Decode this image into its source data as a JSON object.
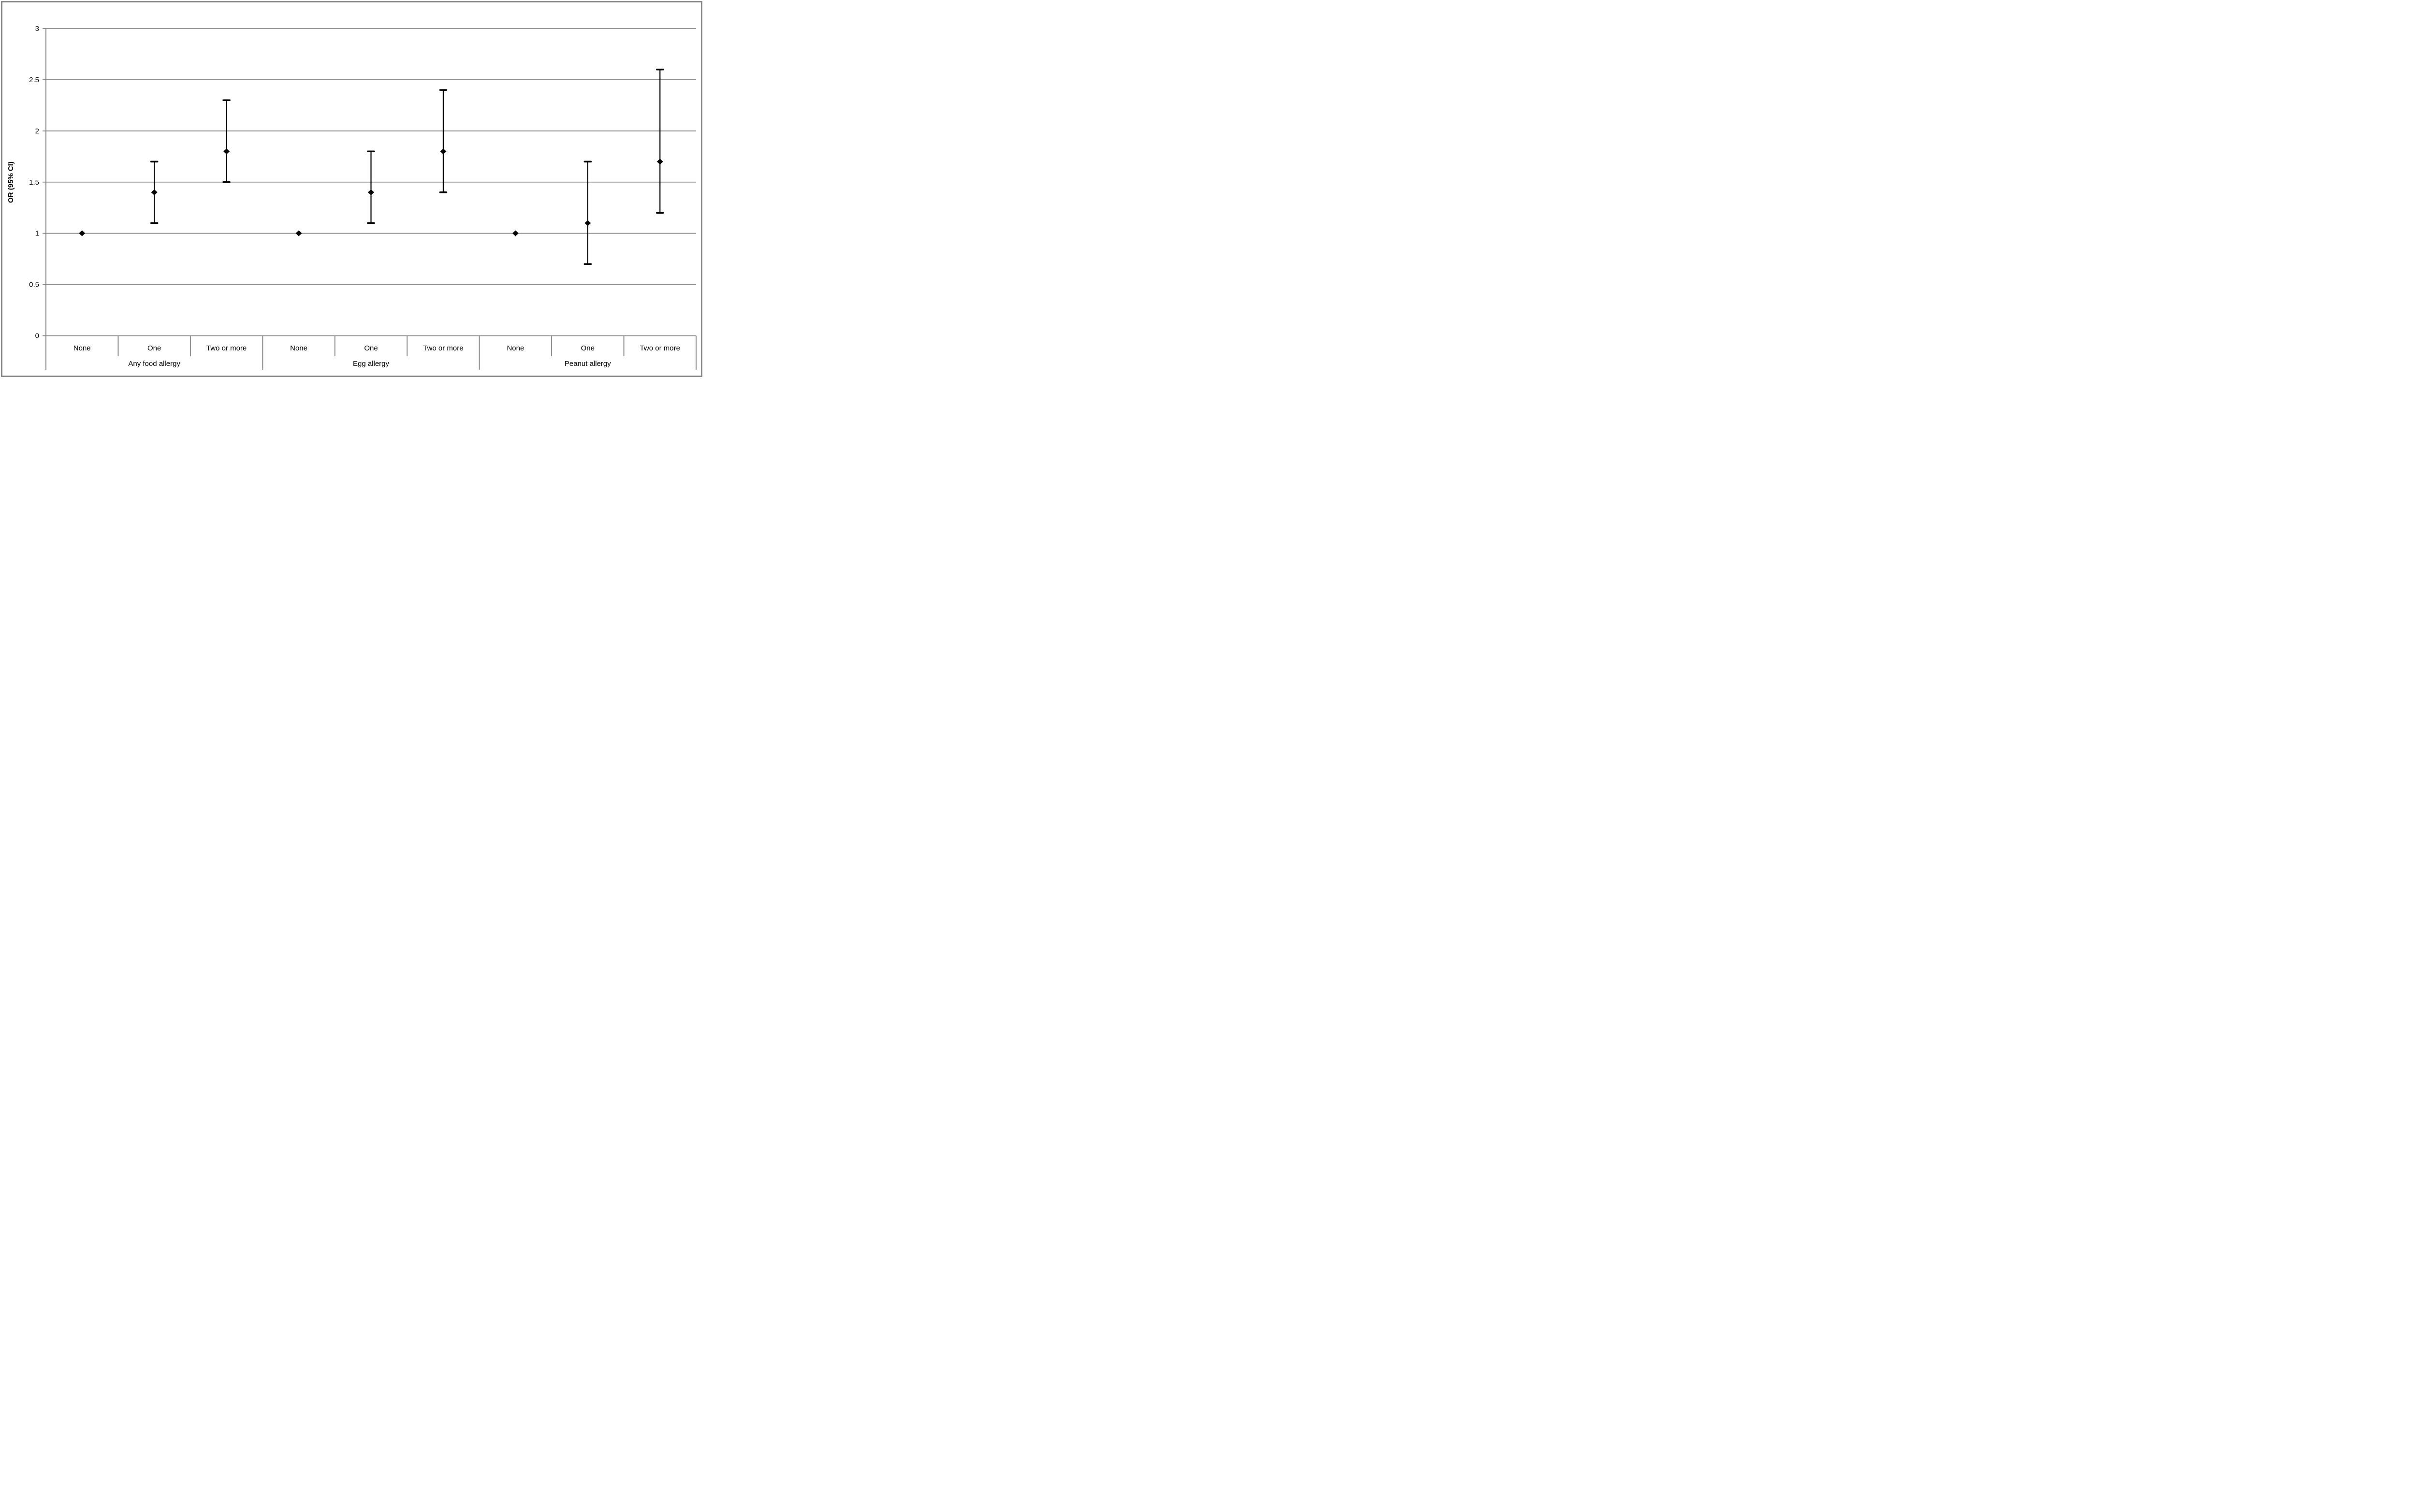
{
  "chart_data": {
    "type": "scatter",
    "subtype": "errorbar-forest-plot",
    "title": "",
    "xlabel": "",
    "ylabel": "OR (95% CI)",
    "ylim": [
      0,
      3
    ],
    "yticks": [
      0,
      0.5,
      1,
      1.5,
      2,
      2.5,
      3
    ],
    "ytick_labels": [
      "0",
      "0.5",
      "1",
      "1.5",
      "2",
      "2.5",
      "3"
    ],
    "grid": "horizontal",
    "legend": "none",
    "marker": "diamond",
    "groups": [
      {
        "label": "Any food allergy",
        "categories": [
          "None",
          "One",
          "Two or more"
        ],
        "points": [
          {
            "category": "None",
            "or": 1.0,
            "ci_low": null,
            "ci_high": null
          },
          {
            "category": "One",
            "or": 1.4,
            "ci_low": 1.1,
            "ci_high": 1.7
          },
          {
            "category": "Two or more",
            "or": 1.8,
            "ci_low": 1.5,
            "ci_high": 2.3
          }
        ]
      },
      {
        "label": "Egg allergy",
        "categories": [
          "None",
          "One",
          "Two or more"
        ],
        "points": [
          {
            "category": "None",
            "or": 1.0,
            "ci_low": null,
            "ci_high": null
          },
          {
            "category": "One",
            "or": 1.4,
            "ci_low": 1.1,
            "ci_high": 1.8
          },
          {
            "category": "Two or more",
            "or": 1.8,
            "ci_low": 1.4,
            "ci_high": 2.4
          }
        ]
      },
      {
        "label": "Peanut allergy",
        "categories": [
          "None",
          "One",
          "Two or more"
        ],
        "points": [
          {
            "category": "None",
            "or": 1.0,
            "ci_low": null,
            "ci_high": null
          },
          {
            "category": "One",
            "or": 1.1,
            "ci_low": 0.7,
            "ci_high": 1.7
          },
          {
            "category": "Two or more",
            "or": 1.7,
            "ci_low": 1.2,
            "ci_high": 2.6
          }
        ]
      }
    ],
    "colors": {
      "background": "#ffffff",
      "grid": "#8c8c8c",
      "axis": "#878787",
      "separator": "#8c8c8c",
      "marker": "#000000",
      "error_bar": "#000000",
      "text": "#000000",
      "border": "#878787"
    }
  }
}
